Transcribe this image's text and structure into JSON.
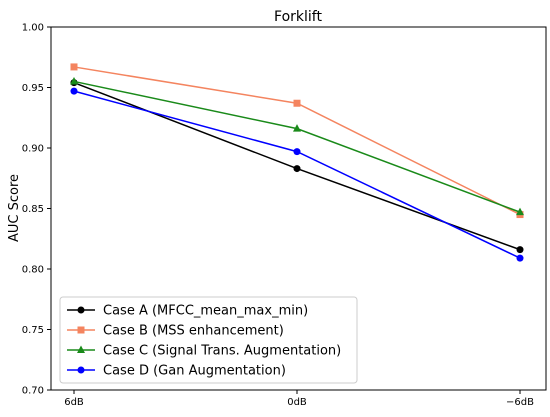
{
  "chart_data": {
    "type": "line",
    "title": "Forklift",
    "xlabel": "",
    "ylabel": "AUC Score",
    "categories": [
      "6dB",
      "0dB",
      "−6dB"
    ],
    "ylim": [
      0.7,
      1.0
    ],
    "yticks": [
      "0.70",
      "0.75",
      "0.80",
      "0.85",
      "0.90",
      "0.95",
      "1.00"
    ],
    "grid": false,
    "legend_position": "bottom-left",
    "series": [
      {
        "name": "Case A (MFCC_mean_max_min)",
        "values": [
          0.954,
          0.883,
          0.816
        ],
        "color": "#000000",
        "marker": "circle"
      },
      {
        "name": "Case B (MSS enhancement)",
        "values": [
          0.967,
          0.937,
          0.845
        ],
        "color": "#f4845f",
        "marker": "square"
      },
      {
        "name": "Case C (Signal Trans. Augmentation)",
        "values": [
          0.955,
          0.916,
          0.847
        ],
        "color": "#1a8a1a",
        "marker": "triangle"
      },
      {
        "name": "Case D (Gan Augmentation)",
        "values": [
          0.947,
          0.897,
          0.809
        ],
        "color": "#0000ff",
        "marker": "circle"
      }
    ]
  }
}
